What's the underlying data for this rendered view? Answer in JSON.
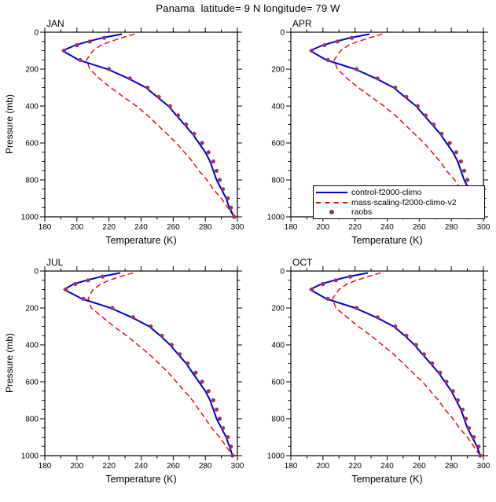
{
  "title": "Panama  latitude= 9 N longitude= 79 W",
  "axes": {
    "xlabel": "Temperature (K)",
    "ylabel": "Pressure (mb)",
    "xlim": [
      180,
      300
    ],
    "ylim": [
      0,
      1000
    ],
    "xticks": [
      180,
      200,
      220,
      240,
      260,
      280,
      300
    ],
    "yticks": [
      0,
      200,
      400,
      600,
      800,
      1000
    ],
    "x_minor_step": 10,
    "y_minor_step": 50,
    "y_inverted_pressure_axis": true,
    "grid": false
  },
  "colors": {
    "control": "#0000cc",
    "mass_scaling": "#ee0000",
    "raobs": "#993366",
    "frame": "#000000"
  },
  "legend": {
    "position": "inside-apr-panel-bottom",
    "items": [
      {
        "label": "control-f2000-climo",
        "type": "line",
        "style": "solid",
        "color": "#0000cc"
      },
      {
        "label": "mass-scaling-f2000-climo-v2",
        "type": "line",
        "style": "dashed",
        "color": "#ee0000"
      },
      {
        "label": "raobs",
        "type": "marker",
        "color": "#993366"
      }
    ]
  },
  "chart_data": [
    {
      "type": "line",
      "title": "JAN",
      "series": [
        {
          "name": "control-f2000-climo",
          "kind": "line",
          "style": "solid",
          "color": "#0000cc",
          "pressure": [
            10,
            30,
            50,
            70,
            100,
            150,
            200,
            250,
            300,
            350,
            400,
            450,
            500,
            550,
            600,
            650,
            700,
            750,
            800,
            850,
            900,
            950,
            1000
          ],
          "temperature": [
            228,
            216,
            207,
            199,
            191,
            201,
            219,
            232,
            243,
            250,
            257,
            262,
            267,
            272,
            276,
            280,
            283,
            285,
            287,
            290,
            293,
            295,
            298
          ]
        },
        {
          "name": "mass-scaling-f2000-climo-v2",
          "kind": "line",
          "style": "dashed",
          "color": "#ee0000",
          "pressure": [
            10,
            30,
            50,
            70,
            100,
            150,
            200,
            250,
            300,
            350,
            400,
            450,
            500,
            550,
            600,
            650,
            700,
            750,
            800,
            850,
            900,
            950,
            1000
          ],
          "temperature": [
            236,
            228,
            221,
            215,
            210,
            206,
            208,
            214,
            221,
            229,
            237,
            244,
            250,
            256,
            262,
            267,
            272,
            276,
            281,
            285,
            290,
            294,
            298
          ]
        },
        {
          "name": "raobs",
          "kind": "marker",
          "color": "#993366",
          "pressure": [
            30,
            50,
            70,
            100,
            150,
            200,
            250,
            300,
            350,
            400,
            450,
            500,
            550,
            600,
            650,
            700,
            750,
            800,
            850,
            900,
            950,
            1000
          ],
          "temperature": [
            217,
            208,
            200,
            192,
            202,
            220,
            233,
            244,
            251,
            258,
            263,
            268,
            273,
            278,
            282,
            285,
            287,
            289,
            291,
            294,
            296,
            298
          ]
        }
      ]
    },
    {
      "type": "line",
      "title": "APR",
      "series": [
        {
          "name": "control-f2000-climo",
          "kind": "line",
          "style": "solid",
          "color": "#0000cc",
          "pressure": [
            10,
            30,
            50,
            70,
            100,
            150,
            200,
            250,
            300,
            350,
            400,
            450,
            500,
            550,
            600,
            650,
            700,
            750,
            800,
            850,
            900,
            950,
            1000
          ],
          "temperature": [
            229,
            217,
            208,
            200,
            192,
            202,
            220,
            233,
            244,
            251,
            258,
            263,
            268,
            273,
            277,
            281,
            284,
            286,
            288,
            291,
            294,
            296,
            299
          ]
        },
        {
          "name": "mass-scaling-f2000-climo-v2",
          "kind": "line",
          "style": "dashed",
          "color": "#ee0000",
          "pressure": [
            10,
            30,
            50,
            70,
            100,
            150,
            200,
            250,
            300,
            350,
            400,
            450,
            500,
            550,
            600,
            650,
            700,
            750,
            800,
            850,
            900,
            950,
            1000
          ],
          "temperature": [
            237,
            229,
            222,
            216,
            211,
            207,
            209,
            215,
            222,
            230,
            238,
            245,
            251,
            257,
            263,
            268,
            273,
            277,
            282,
            286,
            291,
            295,
            299
          ]
        },
        {
          "name": "raobs",
          "kind": "marker",
          "color": "#993366",
          "pressure": [
            30,
            50,
            70,
            100,
            150,
            200,
            250,
            300,
            350,
            400,
            450,
            500,
            550,
            600,
            650,
            700,
            750,
            800,
            850,
            900,
            950,
            1000
          ],
          "temperature": [
            218,
            209,
            201,
            193,
            203,
            221,
            234,
            245,
            252,
            259,
            264,
            269,
            274,
            279,
            283,
            286,
            288,
            290,
            292,
            295,
            297,
            299
          ]
        }
      ]
    },
    {
      "type": "line",
      "title": "JUL",
      "series": [
        {
          "name": "control-f2000-climo",
          "kind": "line",
          "style": "solid",
          "color": "#0000cc",
          "pressure": [
            10,
            30,
            50,
            70,
            100,
            150,
            200,
            250,
            300,
            350,
            400,
            450,
            500,
            550,
            600,
            650,
            700,
            750,
            800,
            850,
            900,
            950,
            1000
          ],
          "temperature": [
            227,
            215,
            206,
            198,
            192,
            203,
            221,
            234,
            245,
            252,
            258,
            263,
            268,
            272,
            276,
            280,
            283,
            285,
            287,
            290,
            293,
            295,
            297
          ]
        },
        {
          "name": "mass-scaling-f2000-climo-v2",
          "kind": "line",
          "style": "dashed",
          "color": "#ee0000",
          "pressure": [
            10,
            30,
            50,
            70,
            100,
            150,
            200,
            250,
            300,
            350,
            400,
            450,
            500,
            550,
            600,
            650,
            700,
            750,
            800,
            850,
            900,
            950,
            1000
          ],
          "temperature": [
            235,
            227,
            220,
            215,
            210,
            207,
            209,
            216,
            223,
            231,
            238,
            245,
            251,
            257,
            262,
            267,
            272,
            276,
            280,
            284,
            289,
            293,
            297
          ]
        },
        {
          "name": "raobs",
          "kind": "marker",
          "color": "#993366",
          "pressure": [
            30,
            50,
            70,
            100,
            150,
            200,
            250,
            300,
            350,
            400,
            450,
            500,
            550,
            600,
            650,
            700,
            750,
            800,
            850,
            900,
            950,
            1000
          ],
          "temperature": [
            216,
            207,
            199,
            193,
            204,
            222,
            235,
            246,
            253,
            259,
            264,
            269,
            274,
            278,
            282,
            285,
            287,
            289,
            291,
            294,
            296,
            297
          ]
        }
      ]
    },
    {
      "type": "line",
      "title": "OCT",
      "series": [
        {
          "name": "control-f2000-climo",
          "kind": "line",
          "style": "solid",
          "color": "#0000cc",
          "pressure": [
            10,
            30,
            50,
            70,
            100,
            150,
            200,
            250,
            300,
            350,
            400,
            450,
            500,
            550,
            600,
            650,
            700,
            750,
            800,
            850,
            900,
            950,
            1000
          ],
          "temperature": [
            228,
            216,
            207,
            199,
            192,
            202,
            220,
            233,
            244,
            251,
            257,
            262,
            267,
            272,
            276,
            280,
            283,
            286,
            288,
            290,
            293,
            296,
            298
          ]
        },
        {
          "name": "mass-scaling-f2000-climo-v2",
          "kind": "line",
          "style": "dashed",
          "color": "#ee0000",
          "pressure": [
            10,
            30,
            50,
            70,
            100,
            150,
            200,
            250,
            300,
            350,
            400,
            450,
            500,
            550,
            600,
            650,
            700,
            750,
            800,
            850,
            900,
            950,
            1000
          ],
          "temperature": [
            236,
            228,
            221,
            215,
            210,
            206,
            208,
            215,
            222,
            230,
            237,
            244,
            250,
            256,
            262,
            267,
            272,
            276,
            281,
            285,
            290,
            294,
            298
          ]
        },
        {
          "name": "raobs",
          "kind": "marker",
          "color": "#993366",
          "pressure": [
            30,
            50,
            70,
            100,
            150,
            200,
            250,
            300,
            350,
            400,
            450,
            500,
            550,
            600,
            650,
            700,
            750,
            800,
            850,
            900,
            950,
            1000
          ],
          "temperature": [
            217,
            208,
            200,
            193,
            203,
            221,
            234,
            245,
            252,
            258,
            263,
            268,
            273,
            277,
            281,
            284,
            287,
            289,
            291,
            294,
            297,
            298
          ]
        }
      ]
    }
  ]
}
